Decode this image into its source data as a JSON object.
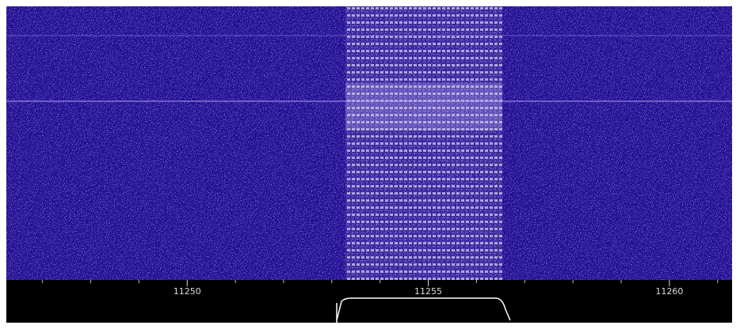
{
  "chart_data": {
    "type": "waterfall",
    "xlim": [
      11246.25,
      11261.3
    ],
    "xticks": [
      11250,
      11255,
      11260
    ],
    "xticks_minor": [
      11247,
      11248,
      11249,
      11251,
      11252,
      11253,
      11254,
      11256,
      11257,
      11258,
      11259,
      11261
    ],
    "passband": [
      11253.2,
      11256.6
    ]
  }
}
